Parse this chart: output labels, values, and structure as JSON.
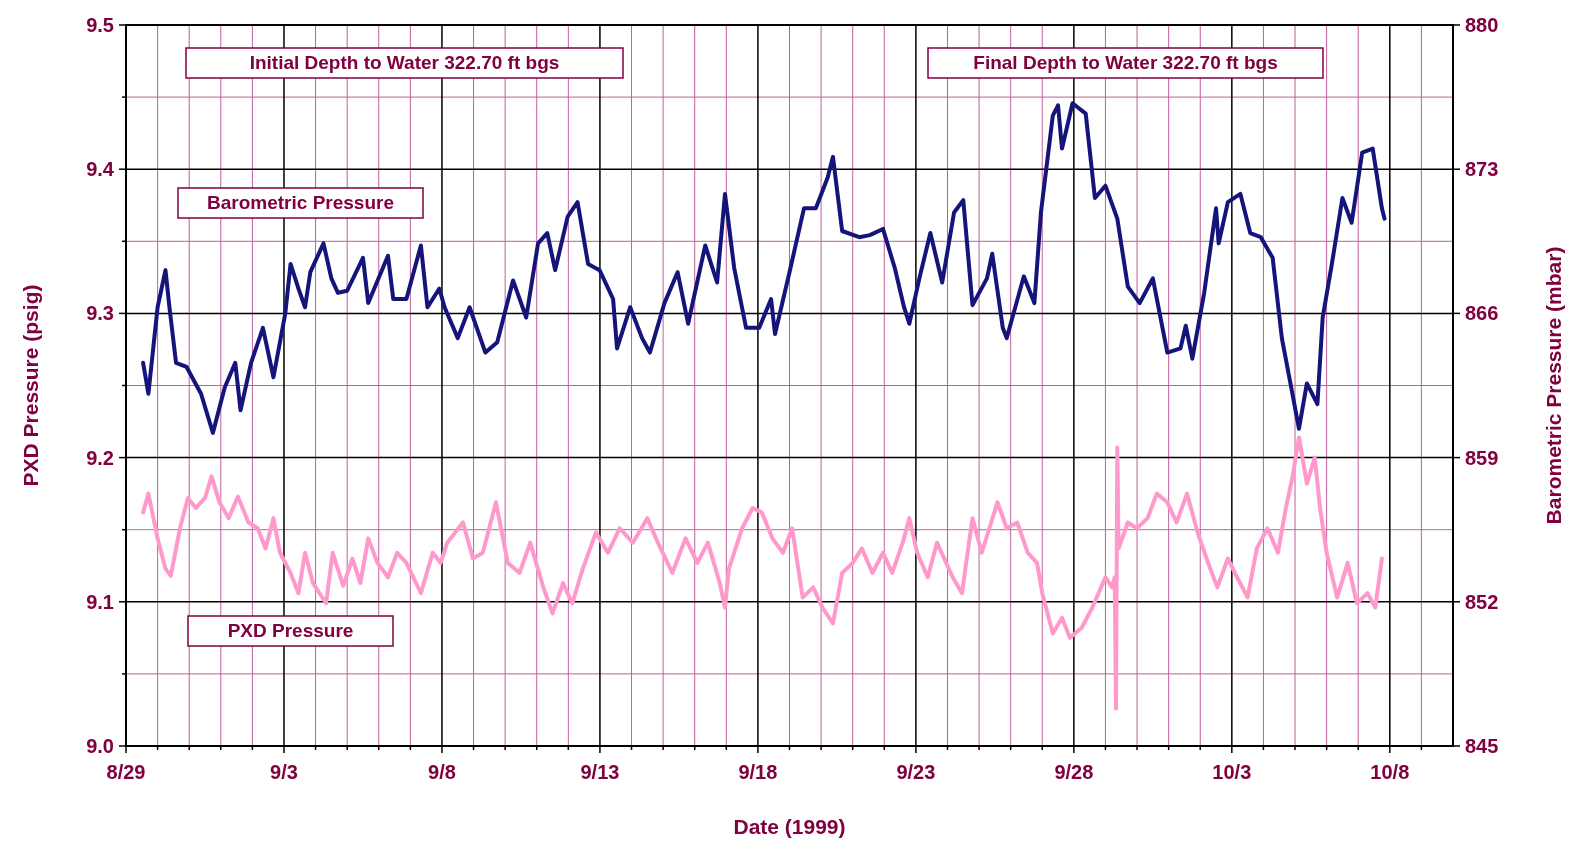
{
  "chart_data": {
    "type": "line",
    "xlabel": "Date (1999)",
    "ylabel": "PXD Pressure (psig)",
    "y2label": "Barometric Pressure (mbar)",
    "xlim": [
      "1999-08-29",
      "1999-10-10"
    ],
    "xticks": [
      {
        "value": "1999-08-29",
        "label": "8/29"
      },
      {
        "value": "1999-08-30",
        "label": null
      },
      {
        "value": "1999-08-31",
        "label": null
      },
      {
        "value": "1999-09-01",
        "label": null
      },
      {
        "value": "1999-09-02",
        "label": null
      },
      {
        "value": "1999-09-03",
        "label": "9/3"
      },
      {
        "value": "1999-09-04",
        "label": null
      },
      {
        "value": "1999-09-05",
        "label": null
      },
      {
        "value": "1999-09-06",
        "label": null
      },
      {
        "value": "1999-09-07",
        "label": null
      },
      {
        "value": "1999-09-08",
        "label": "9/8"
      },
      {
        "value": "1999-09-09",
        "label": null
      },
      {
        "value": "1999-09-10",
        "label": null
      },
      {
        "value": "1999-09-11",
        "label": null
      },
      {
        "value": "1999-09-12",
        "label": null
      },
      {
        "value": "1999-09-13",
        "label": "9/13"
      },
      {
        "value": "1999-09-14",
        "label": null
      },
      {
        "value": "1999-09-15",
        "label": null
      },
      {
        "value": "1999-09-16",
        "label": null
      },
      {
        "value": "1999-09-17",
        "label": null
      },
      {
        "value": "1999-09-18",
        "label": "9/18"
      },
      {
        "value": "1999-09-19",
        "label": null
      },
      {
        "value": "1999-09-20",
        "label": null
      },
      {
        "value": "1999-09-21",
        "label": null
      },
      {
        "value": "1999-09-22",
        "label": null
      },
      {
        "value": "1999-09-23",
        "label": "9/23"
      },
      {
        "value": "1999-09-24",
        "label": null
      },
      {
        "value": "1999-09-25",
        "label": null
      },
      {
        "value": "1999-09-26",
        "label": null
      },
      {
        "value": "1999-09-27",
        "label": null
      },
      {
        "value": "1999-09-28",
        "label": "9/28"
      },
      {
        "value": "1999-09-29",
        "label": null
      },
      {
        "value": "1999-09-30",
        "label": null
      },
      {
        "value": "1999-10-01",
        "label": null
      },
      {
        "value": "1999-10-02",
        "label": null
      },
      {
        "value": "1999-10-03",
        "label": "10/3"
      },
      {
        "value": "1999-10-04",
        "label": null
      },
      {
        "value": "1999-10-05",
        "label": null
      },
      {
        "value": "1999-10-06",
        "label": null
      },
      {
        "value": "1999-10-07",
        "label": null
      },
      {
        "value": "1999-10-08",
        "label": "10/8"
      },
      {
        "value": "1999-10-09",
        "label": null
      }
    ],
    "ylim": [
      9.0,
      9.5
    ],
    "yticks": [
      {
        "value": 9.0,
        "label": "9.0"
      },
      {
        "value": 9.05,
        "label": null
      },
      9.1,
      {
        "value": 9.15,
        "label": null
      },
      9.2,
      {
        "value": 9.25,
        "label": null
      },
      9.3,
      {
        "value": 9.35,
        "label": null
      },
      9.4,
      {
        "value": 9.45,
        "label": null
      },
      9.5
    ],
    "y2lim": [
      845,
      880
    ],
    "y2ticks": [
      845,
      852,
      859,
      866,
      873,
      880
    ],
    "grid": true,
    "annotations": [
      "Initial Depth to Water 322.70 ft bgs",
      "Final Depth to Water 322.70 ft bgs"
    ],
    "series": [
      {
        "name": "Barometric Pressure",
        "color": "#14147a",
        "axis": "y2",
        "x": [
          "1999-08-29T13:00",
          "1999-08-29T17:00",
          "1999-08-30T00:00",
          "1999-08-30T06:00",
          "1999-08-30T09:00",
          "1999-08-30T14:00",
          "1999-08-30T22:00",
          "1999-08-31T09:00",
          "1999-08-31T18:00",
          "1999-09-01T03:00",
          "1999-09-01T11:00",
          "1999-09-01T15:00",
          "1999-09-01T23:00",
          "1999-09-02T08:00",
          "1999-09-02T16:00",
          "1999-09-03T01:00",
          "1999-09-03T05:00",
          "1999-09-03T11:00",
          "1999-09-03T16:00",
          "1999-09-03T20:00",
          "1999-09-04T06:00",
          "1999-09-04T12:00",
          "1999-09-04T17:00",
          "1999-09-05T00:00",
          "1999-09-05T12:00",
          "1999-09-05T16:00",
          "1999-09-06T07:00",
          "1999-09-06T11:00",
          "1999-09-06T21:00",
          "1999-09-07T08:00",
          "1999-09-07T13:00",
          "1999-09-07T22:00",
          "1999-09-08T02:00",
          "1999-09-08T12:00",
          "1999-09-08T21:00",
          "1999-09-09T09:00",
          "1999-09-09T18:00",
          "1999-09-10T06:00",
          "1999-09-10T16:00",
          "1999-09-11T01:00",
          "1999-09-11T08:00",
          "1999-09-11T14:00",
          "1999-09-11T23:30",
          "1999-09-12T07:00",
          "1999-09-12T15:00",
          "1999-09-12T23:45",
          "1999-09-13T10:00",
          "1999-09-13T13:00",
          "1999-09-13T23:00",
          "1999-09-14T08:00",
          "1999-09-14T14:00",
          "1999-09-15T01:00",
          "1999-09-15T11:00",
          "1999-09-15T19:00",
          "1999-09-16T08:00",
          "1999-09-16T17:00",
          "1999-09-16T23:00",
          "1999-09-17T06:00",
          "1999-09-17T15:00",
          "1999-09-18T01:00",
          "1999-09-18T10:00",
          "1999-09-18T13:00",
          "1999-09-19T00:00",
          "1999-09-19T11:00",
          "1999-09-19T20:00",
          "1999-09-20T05:00",
          "1999-09-20T09:00",
          "1999-09-20T16:00",
          "1999-09-21T05:00",
          "1999-09-21T13:00",
          "1999-09-21T23:00",
          "1999-09-22T08:00",
          "1999-09-22T15:00",
          "1999-09-22T19:00",
          "1999-09-23T03:00",
          "1999-09-23T11:00",
          "1999-09-23T20:00",
          "1999-09-24T05:00",
          "1999-09-24T12:00",
          "1999-09-24T19:00",
          "1999-09-25T06:00",
          "1999-09-25T10:00",
          "1999-09-25T18:00",
          "1999-09-25T21:00",
          "1999-09-26T10:00",
          "1999-09-26T18:00",
          "1999-09-26T23:00",
          "1999-09-27T08:00",
          "1999-09-27T12:00",
          "1999-09-27T15:00",
          "1999-09-27T23:00",
          "1999-09-28T09:00",
          "1999-09-28T16:00",
          "1999-09-29T00:00",
          "1999-09-29T09:00",
          "1999-09-29T17:00",
          "1999-09-30T02:00",
          "1999-09-30T12:00",
          "1999-09-30T23:00",
          "1999-10-01T09:00",
          "1999-10-01T13:00",
          "1999-10-01T18:00",
          "1999-10-02T03:00",
          "1999-10-02T12:00",
          "1999-10-02T14:00",
          "1999-10-02T21:00",
          "1999-10-03T06:30",
          "1999-10-03T14:00",
          "1999-10-03T22:00",
          "1999-10-04T07:00",
          "1999-10-04T14:00",
          "1999-10-04T22:00",
          "1999-10-05T03:00",
          "1999-10-05T09:00",
          "1999-10-05T17:00",
          "1999-10-05T21:00",
          "1999-10-06T04:00",
          "1999-10-06T12:00",
          "1999-10-06T19:00",
          "1999-10-07T03:00",
          "1999-10-07T11:00",
          "1999-10-07T18:00",
          "1999-10-07T20:00"
        ],
        "values": [
          863.6,
          862.1,
          866.3,
          868.1,
          866.3,
          863.6,
          863.4,
          862.1,
          860.2,
          862.4,
          863.6,
          861.3,
          863.6,
          865.3,
          862.9,
          866.0,
          868.4,
          867.2,
          866.3,
          868.0,
          869.4,
          867.7,
          867.0,
          867.1,
          868.7,
          866.5,
          868.8,
          866.7,
          866.7,
          869.3,
          866.3,
          867.2,
          866.3,
          864.8,
          866.3,
          864.1,
          864.6,
          867.6,
          865.8,
          869.4,
          869.9,
          868.1,
          870.7,
          871.4,
          868.4,
          868.1,
          866.7,
          864.3,
          866.3,
          864.8,
          864.1,
          866.5,
          868.0,
          865.5,
          869.3,
          867.5,
          871.8,
          868.2,
          865.3,
          865.3,
          866.7,
          865.0,
          868.0,
          871.1,
          871.1,
          872.6,
          873.6,
          870.0,
          869.7,
          869.8,
          870.1,
          868.2,
          866.3,
          865.5,
          867.8,
          869.9,
          867.5,
          870.9,
          871.5,
          866.4,
          867.7,
          868.9,
          865.3,
          864.8,
          867.8,
          866.5,
          870.9,
          875.6,
          876.1,
          874.0,
          876.2,
          875.7,
          871.6,
          872.2,
          870.6,
          867.3,
          866.5,
          867.7,
          864.1,
          864.3,
          865.4,
          863.8,
          867.0,
          871.1,
          869.4,
          871.4,
          871.8,
          869.9,
          869.7,
          868.7,
          864.8,
          862.1,
          860.4,
          862.6,
          861.6,
          865.8,
          868.4,
          871.6,
          870.4,
          873.8,
          874.0,
          871.1,
          870.6
        ]
      },
      {
        "name": "PXD Pressure",
        "color": "#ff99cc",
        "axis": "y",
        "x": [
          "1999-08-29T13:00",
          "1999-08-29T17:00",
          "1999-08-30T00:00",
          "1999-08-30T06:00",
          "1999-08-30T10:00",
          "1999-08-30T17:00",
          "1999-08-30T23:00",
          "1999-08-31T05:00",
          "1999-08-31T12:00",
          "1999-08-31T17:00",
          "1999-08-31T23:00",
          "1999-09-01T06:00",
          "1999-09-01T13:00",
          "1999-09-01T21:00",
          "1999-09-02T04:00",
          "1999-09-02T10:00",
          "1999-09-02T16:00",
          "1999-09-02T21:00",
          "1999-09-03T05:00",
          "1999-09-03T11:00",
          "1999-09-03T16:00",
          "1999-09-03T22:00",
          "1999-09-04T08:00",
          "1999-09-04T13:00",
          "1999-09-04T21:00",
          "1999-09-05T04:00",
          "1999-09-05T10:00",
          "1999-09-05T16:00",
          "1999-09-05T23:00",
          "1999-09-06T07:00",
          "1999-09-06T14:00",
          "1999-09-06T21:00",
          "1999-09-07T08:00",
          "1999-09-07T17:00",
          "1999-09-07T23:00",
          "1999-09-08T04:00",
          "1999-09-08T16:00",
          "1999-09-08T23:30",
          "1999-09-09T07:00",
          "1999-09-09T17:00",
          "1999-09-10T02:00",
          "1999-09-10T11:00",
          "1999-09-10T19:00",
          "1999-09-11T05:00",
          "1999-09-11T12:00",
          "1999-09-11T20:00",
          "1999-09-12T03:00",
          "1999-09-12T11:00",
          "1999-09-12T21:00",
          "1999-09-13T06:00",
          "1999-09-13T15:00",
          "1999-09-14T01:00",
          "1999-09-14T12:00",
          "1999-09-14T20:00",
          "1999-09-15T07:00",
          "1999-09-15T17:00",
          "1999-09-16T02:00",
          "1999-09-16T10:00",
          "1999-09-16T19:00",
          "1999-09-16T23:00",
          "1999-09-17T02:00",
          "1999-09-17T12:00",
          "1999-09-17T20:00",
          "1999-09-18T03:00",
          "1999-09-18T11:00",
          "1999-09-18T19:00",
          "1999-09-19T02:00",
          "1999-09-19T10:00",
          "1999-09-19T18:00",
          "1999-09-20T01:00",
          "1999-09-20T09:00",
          "1999-09-20T16:00",
          "1999-09-21T00:00",
          "1999-09-21T07:00",
          "1999-09-21T15:00",
          "1999-09-21T23:00",
          "1999-09-22T06:00",
          "1999-09-22T14:00",
          "1999-09-22T19:00",
          "1999-09-23T01:00",
          "1999-09-23T09:00",
          "1999-09-23T16:00",
          "1999-09-24T04:00",
          "1999-09-24T11:00",
          "1999-09-24T19:00",
          "1999-09-25T02:00",
          "1999-09-25T14:00",
          "1999-09-25T21:00",
          "1999-09-26T05:00",
          "1999-09-26T13:00",
          "1999-09-26T20:00",
          "1999-09-27T00:00",
          "1999-09-27T08:00",
          "1999-09-27T15:00",
          "1999-09-27T21:00",
          "1999-09-28T06:00",
          "1999-09-28T14:00",
          "1999-09-29T00:00",
          "1999-09-29T05:00",
          "1999-09-29T07:00",
          "1999-09-29T08:00",
          "1999-09-29T09:00",
          "1999-09-29T10:00",
          "1999-09-29T17:00",
          "1999-09-30T00:00",
          "1999-09-30T08:00",
          "1999-09-30T15:00",
          "1999-09-30T23:00",
          "1999-10-01T06:00",
          "1999-10-01T14:00",
          "1999-10-01T22:00",
          "1999-10-02T06:00",
          "1999-10-02T13:00",
          "1999-10-02T21:00",
          "1999-10-03T04:00",
          "1999-10-03T12:00",
          "1999-10-03T19:00",
          "1999-10-04T03:00",
          "1999-10-04T11:00",
          "1999-10-04T17:00",
          "1999-10-04T22:00",
          "1999-10-05T03:00",
          "1999-10-05T09:00",
          "1999-10-05T15:00",
          "1999-10-05T19:00",
          "1999-10-06T00:00",
          "1999-10-06T08:00",
          "1999-10-06T16:00",
          "1999-10-06T23:00",
          "1999-10-07T07:00",
          "1999-10-07T13:00",
          "1999-10-07T18:00"
        ],
        "values": [
          9.162,
          9.175,
          9.144,
          9.123,
          9.118,
          9.151,
          9.172,
          9.165,
          9.172,
          9.187,
          9.169,
          9.158,
          9.173,
          9.155,
          9.151,
          9.137,
          9.158,
          9.134,
          9.12,
          9.106,
          9.134,
          9.113,
          9.099,
          9.134,
          9.111,
          9.13,
          9.113,
          9.144,
          9.127,
          9.117,
          9.134,
          9.127,
          9.106,
          9.134,
          9.127,
          9.141,
          9.155,
          9.13,
          9.134,
          9.169,
          9.127,
          9.12,
          9.141,
          9.11,
          9.092,
          9.113,
          9.099,
          9.123,
          9.148,
          9.134,
          9.151,
          9.141,
          9.158,
          9.141,
          9.12,
          9.144,
          9.127,
          9.141,
          9.113,
          9.096,
          9.123,
          9.151,
          9.165,
          9.162,
          9.144,
          9.134,
          9.151,
          9.103,
          9.11,
          9.096,
          9.085,
          9.12,
          9.127,
          9.137,
          9.12,
          9.134,
          9.12,
          9.141,
          9.158,
          9.134,
          9.117,
          9.141,
          9.117,
          9.106,
          9.158,
          9.134,
          9.169,
          9.151,
          9.155,
          9.134,
          9.127,
          9.106,
          9.078,
          9.089,
          9.075,
          9.082,
          9.096,
          9.117,
          9.11,
          9.117,
          9.026,
          9.207,
          9.137,
          9.155,
          9.151,
          9.158,
          9.175,
          9.169,
          9.155,
          9.175,
          9.148,
          9.127,
          9.11,
          9.13,
          9.117,
          9.103,
          9.137,
          9.151,
          9.134,
          9.165,
          9.186,
          9.214,
          9.182,
          9.2,
          9.165,
          9.134,
          9.103,
          9.127,
          9.099,
          9.106,
          9.096,
          9.13
        ]
      }
    ]
  }
}
